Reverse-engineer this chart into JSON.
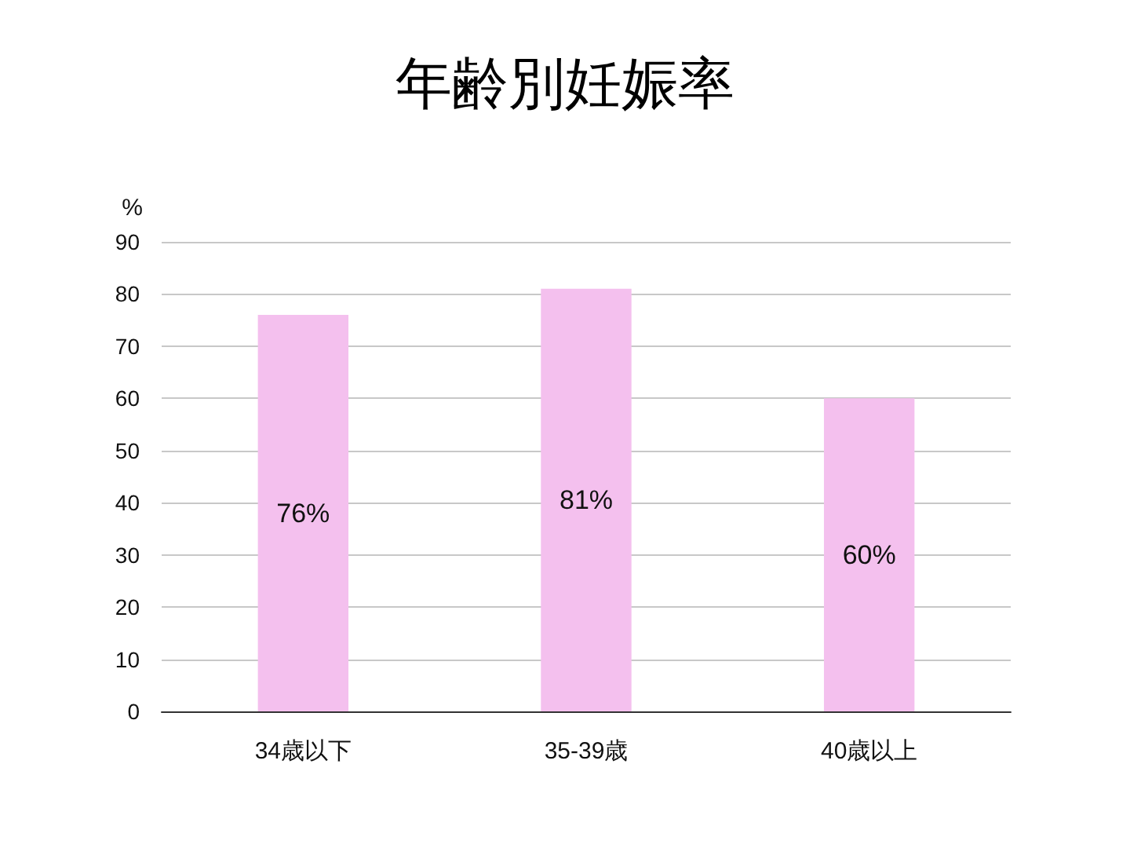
{
  "chart_data": {
    "type": "bar",
    "title": "年齢別妊娠率",
    "ylabel": "%",
    "categories": [
      "34歳以下",
      "35-39歳",
      "40歳以上"
    ],
    "values": [
      76,
      81,
      60
    ],
    "value_labels": [
      "76%",
      "81%",
      "60%"
    ],
    "color": "#f4c0ee",
    "ylim": [
      0,
      90
    ],
    "yticks": [
      0,
      10,
      20,
      30,
      40,
      50,
      60,
      70,
      80,
      90
    ],
    "grid": "y"
  }
}
